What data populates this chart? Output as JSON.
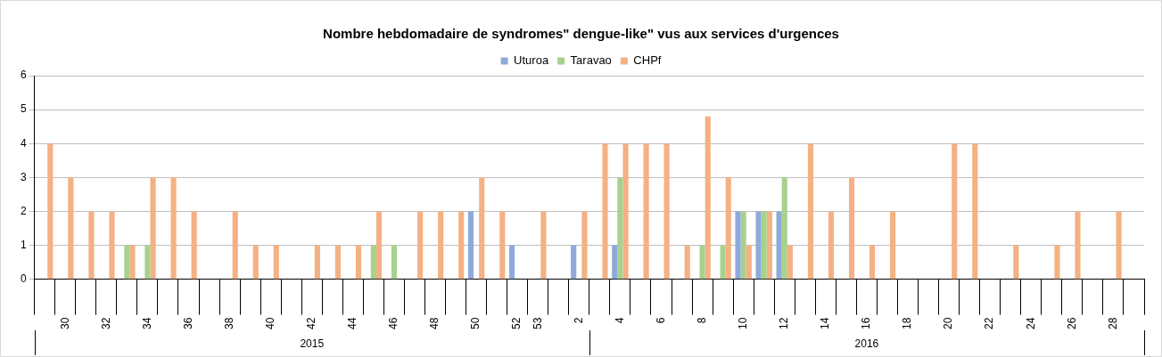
{
  "chart_data": {
    "type": "bar",
    "title": "Nombre hebdomadaire de syndromes\" dengue-like\" vus aux services d'urgences",
    "categories": [
      null,
      "30",
      null,
      "32",
      null,
      "34",
      null,
      "36",
      null,
      "38",
      null,
      "40",
      null,
      "42",
      null,
      "44",
      null,
      "46",
      null,
      "48",
      null,
      "50",
      null,
      "52",
      "53",
      null,
      "2",
      null,
      "4",
      null,
      "6",
      null,
      "8",
      null,
      "10",
      null,
      "12",
      null,
      "14",
      null,
      "16",
      null,
      "18",
      null,
      "20",
      null,
      "22",
      null,
      "24",
      null,
      "26",
      null,
      "28",
      null
    ],
    "series": [
      {
        "name": "Uturoa",
        "color": "#8eaadb",
        "values": [
          0,
          0,
          0,
          0,
          0,
          0,
          0,
          0,
          0,
          0,
          0,
          0,
          0,
          0,
          0,
          0,
          0,
          0,
          0,
          0,
          0,
          2,
          0,
          1,
          0,
          0,
          1,
          0,
          1,
          0,
          0,
          0,
          0,
          0,
          2,
          2,
          2,
          0,
          0,
          0,
          0,
          0,
          0,
          0,
          0,
          0,
          0,
          0,
          0,
          0,
          0,
          0,
          0,
          0
        ]
      },
      {
        "name": "Taravao",
        "color": "#a9d18e",
        "values": [
          0,
          0,
          0,
          0,
          1,
          1,
          0,
          0,
          0,
          0,
          0,
          0,
          0,
          0,
          0,
          0,
          1,
          1,
          0,
          0,
          0,
          0,
          0,
          0,
          0,
          0,
          0,
          0,
          3,
          0,
          0,
          0,
          1,
          1,
          2,
          2,
          3,
          0,
          0,
          0,
          0,
          0,
          0,
          0,
          0,
          0,
          0,
          0,
          0,
          0,
          0,
          0,
          0,
          0
        ]
      },
      {
        "name": "CHPf",
        "color": "#f4b183",
        "values": [
          4,
          3,
          2,
          2,
          1,
          3,
          3,
          2,
          0,
          2,
          1,
          1,
          0,
          1,
          1,
          1,
          2,
          0,
          2,
          2,
          2,
          3,
          2,
          0,
          2,
          0,
          2,
          4,
          4,
          4,
          4,
          1,
          4.8,
          3,
          1,
          2,
          1,
          4,
          2,
          3,
          1,
          2,
          0,
          0,
          4,
          4,
          0,
          1,
          0,
          1,
          2,
          0,
          2,
          0
        ]
      }
    ],
    "ylim": [
      0,
      6
    ],
    "yticks": [
      0,
      1,
      2,
      3,
      4,
      5,
      6
    ],
    "grid": "y",
    "legend": "top",
    "annotations": [
      "2015",
      "2016"
    ]
  }
}
